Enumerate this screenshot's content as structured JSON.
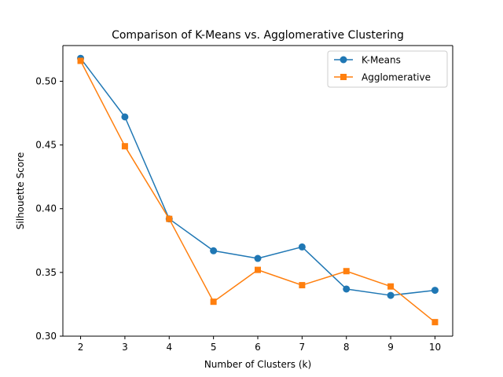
{
  "chart_data": {
    "type": "line",
    "title": "Comparison of K-Means vs. Agglomerative Clustering",
    "xlabel": "Number of Clusters (k)",
    "ylabel": "Silhouette Score",
    "x": [
      2,
      3,
      4,
      5,
      6,
      7,
      8,
      9,
      10
    ],
    "xlim": [
      1.6,
      10.4
    ],
    "ylim": [
      0.3,
      0.528
    ],
    "xticks": [
      "2",
      "3",
      "4",
      "5",
      "6",
      "7",
      "8",
      "9",
      "10"
    ],
    "yticks": [
      "0.30",
      "0.35",
      "0.40",
      "0.45",
      "0.50"
    ],
    "grid": false,
    "legend_position": "top-right",
    "series": [
      {
        "name": "K-Means",
        "color": "#1f77b4",
        "marker": "circle",
        "values": [
          0.518,
          0.472,
          0.392,
          0.367,
          0.361,
          0.37,
          0.337,
          0.332,
          0.336
        ]
      },
      {
        "name": "Agglomerative",
        "color": "#ff7f0e",
        "marker": "square",
        "values": [
          0.516,
          0.449,
          0.392,
          0.327,
          0.352,
          0.34,
          0.351,
          0.339,
          0.311
        ]
      }
    ]
  }
}
